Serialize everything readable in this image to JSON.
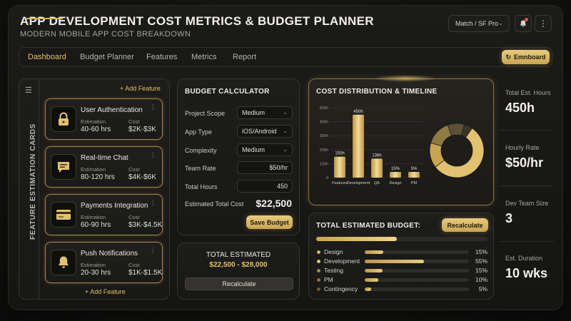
{
  "header": {
    "title": "APP DEVELOPMENT COST METRICS & BUDGET PLANNER",
    "subtitle": "MODERN MOBILE APP COST BREAKDOWN",
    "font_select": "Match / SF Pro",
    "notification_icon": "bell-icon",
    "more_icon": "kebab-icon"
  },
  "tabs": [
    {
      "label": "Dashboard",
      "active": true
    },
    {
      "label": "Budget Planner"
    },
    {
      "label": "Features"
    },
    {
      "label": "Metrics"
    },
    {
      "label": "Report"
    }
  ],
  "toolbar": {
    "emnboard_label": "Emnboard"
  },
  "features_panel": {
    "vertical_title": "FEATURE ESTIMATION CARDS",
    "add_feature_top": "+ Add Feature",
    "add_feature_bottom": "+ Add Feature",
    "labels": {
      "estimation": "Estimation",
      "cost": "Cost"
    },
    "cards": [
      {
        "name": "User Authentication",
        "estimation": "40-60 hrs",
        "cost": "$2K-$3K",
        "icon": "lock-icon"
      },
      {
        "name": "Real-time Chat",
        "estimation": "80-120 hrs",
        "cost": "$4K-$6K",
        "icon": "chat-icon"
      },
      {
        "name": "Payments Integration",
        "estimation": "60-90 hrs",
        "cost": "$3K-$4.5K",
        "icon": "credit-card-icon"
      },
      {
        "name": "Push Notifications",
        "estimation": "20-30 hrs",
        "cost": "$1K-$1.5K",
        "icon": "bell-icon"
      }
    ]
  },
  "calculator": {
    "title": "BUDGET CALCULATOR",
    "project_scope": {
      "label": "Project Scope",
      "value": "Medium"
    },
    "app_type": {
      "label": "App Type",
      "value": "iOS/Android"
    },
    "complexity": {
      "label": "Complexity",
      "value": "Medium"
    },
    "team_rate": {
      "label": "Team Rate",
      "value": "$50/hr"
    },
    "total_hours": {
      "label": "Total Hours",
      "value": "450"
    },
    "estimated_total_label": "Estimated Total Cost",
    "estimated_total_value": "$22,500",
    "save_label": "Save Budget"
  },
  "total_estimated": {
    "title": "TOTAL ESTIMATED",
    "range": "$22,500 - $28,000",
    "recalculate_label": "Recalculate"
  },
  "distribution": {
    "title": "COST DISTRIBUTION & TIMELINE"
  },
  "chart_data": {
    "type": "bar",
    "categories": [
      "Features",
      "Development",
      "QA",
      "Design",
      "PM"
    ],
    "values": [
      150,
      450,
      136,
      15,
      5
    ],
    "data_labels": [
      "150h",
      "450h",
      "136h",
      "15%",
      "5%"
    ],
    "y_ticks": [
      "0",
      "100h",
      "200h",
      "300h",
      "400h",
      "500h"
    ],
    "ylim": [
      0,
      500
    ],
    "donut": {
      "type": "pie",
      "values": [
        55,
        15,
        15,
        10,
        5
      ],
      "colors": [
        "#e2c270",
        "#c9a452",
        "#8f7a44",
        "#5c5132",
        "#3b3527"
      ]
    },
    "colors": {
      "bar": "#d9b55e",
      "bar_light": "#f3dc95"
    }
  },
  "budget": {
    "title": "TOTAL ESTIMATED BUDGET:",
    "recalculate_label": "Recalculate",
    "overall_progress": 0.47,
    "rows": [
      {
        "name": "Design",
        "pct": "15%",
        "fill": 0.18,
        "dot": "#d7b05a"
      },
      {
        "name": "Development",
        "pct": "55%",
        "fill": 0.57,
        "dot": "#e5c470"
      },
      {
        "name": "Testing",
        "pct": "15%",
        "fill": 0.17,
        "dot": "#a58a4a"
      },
      {
        "name": "PM",
        "pct": "10%",
        "fill": 0.13,
        "dot": "#8a7440"
      },
      {
        "name": "Contingency",
        "pct": "5%",
        "fill": 0.06,
        "dot": "#6b5b36"
      }
    ]
  },
  "stats": [
    {
      "label": "Total Est. Hours",
      "value": "450h"
    },
    {
      "label": "Hourly Rate",
      "value": "$50/hr"
    },
    {
      "label": "Dev Team Size",
      "value": "3"
    },
    {
      "label": "Est. Duration",
      "value": "10 wks"
    }
  ]
}
